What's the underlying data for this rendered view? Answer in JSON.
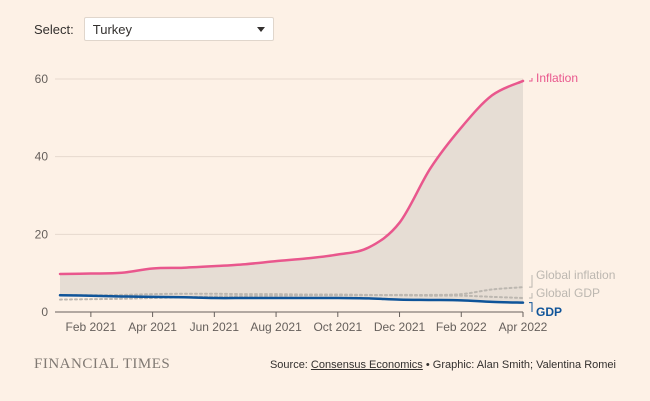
{
  "select": {
    "label": "Select:",
    "value": "Turkey"
  },
  "footer": {
    "brand": "FINANCIAL TIMES",
    "source_prefix": "Source: ",
    "source_link": "Consensus Economics",
    "credits": " • Graphic: Alan Smith; Valentina Romei"
  },
  "chart_data": {
    "type": "area",
    "title": "",
    "xlabel": "",
    "ylabel": "",
    "ylim": [
      0,
      60
    ],
    "yticks": [
      0,
      20,
      40,
      60
    ],
    "xticks": [
      "Feb 2021",
      "Apr 2021",
      "Jun 2021",
      "Aug 2021",
      "Oct 2021",
      "Dec 2021",
      "Feb 2022",
      "Apr 2022"
    ],
    "grid": true,
    "x": [
      "Jan 2021",
      "Feb 2021",
      "Mar 2021",
      "Apr 2021",
      "May 2021",
      "Jun 2021",
      "Jul 2021",
      "Aug 2021",
      "Sep 2021",
      "Oct 2021",
      "Nov 2021",
      "Dec 2021",
      "Jan 2022",
      "Feb 2022",
      "Mar 2022",
      "Apr 2022"
    ],
    "series": [
      {
        "name": "Inflation",
        "color": "#e9578d",
        "width": 2.5,
        "dash": "",
        "values": [
          9.8,
          9.9,
          10.1,
          11.2,
          11.4,
          11.8,
          12.3,
          13.1,
          13.8,
          14.8,
          16.6,
          23.0,
          37.0,
          47.5,
          55.8,
          59.5
        ]
      },
      {
        "name": "Global inflation",
        "color": "#bcb7b0",
        "width": 2,
        "dash": "2 3",
        "values": [
          3.2,
          3.3,
          3.4,
          3.6,
          3.8,
          4.0,
          4.1,
          4.2,
          4.3,
          4.3,
          4.3,
          4.4,
          4.4,
          4.6,
          5.8,
          6.4
        ]
      },
      {
        "name": "Global GDP",
        "color": "#bcb7b0",
        "width": 2,
        "dash": "2 3",
        "values": [
          4.4,
          4.3,
          4.4,
          4.6,
          4.7,
          4.7,
          4.6,
          4.6,
          4.5,
          4.5,
          4.4,
          4.3,
          4.2,
          4.2,
          3.9,
          3.6
        ]
      },
      {
        "name": "GDP",
        "color": "#0f5499",
        "width": 2.5,
        "dash": "",
        "values": [
          4.3,
          4.2,
          4.0,
          3.9,
          3.8,
          3.6,
          3.6,
          3.6,
          3.6,
          3.6,
          3.5,
          3.2,
          3.1,
          3.0,
          2.6,
          2.4
        ]
      }
    ],
    "shade": {
      "between": [
        "GDP",
        "Inflation"
      ],
      "color": "#e6ddd4"
    }
  }
}
